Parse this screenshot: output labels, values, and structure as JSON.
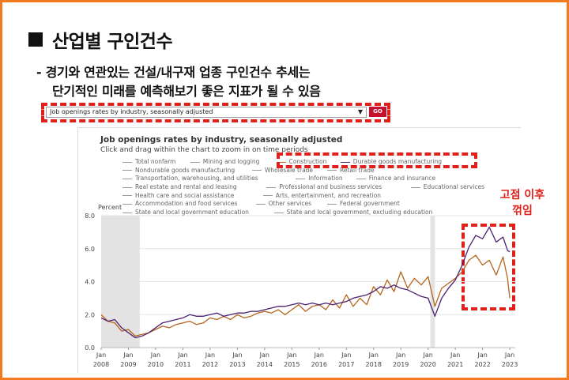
{
  "slide": {
    "title": "산업별 구인건수",
    "bullet_line1": "- 경기와 연관있는 건설/내구재 업종 구인건수 추세는",
    "bullet_line2": "단기적인 미래를 예측해보기 좋은 지표가 될 수 있음",
    "annotation_line1": "고점 이후",
    "annotation_line2": "꺾임",
    "accent_color": "#f47a20",
    "highlight_color": "#e0201b"
  },
  "selector": {
    "value": "Job openings rates by industry, seasonally adjusted",
    "go_label": "GO"
  },
  "chart_data": {
    "type": "line",
    "title": "Job openings rates by industry, seasonally adjusted",
    "subtitle": "Click and drag within the chart to zoom in on time periods",
    "ylabel": "Percent",
    "ylim": [
      0,
      8
    ],
    "yticks": [
      "0.0",
      "2.0",
      "4.0",
      "6.0",
      "8.0"
    ],
    "xticks": [
      {
        "month": "Jan",
        "year": "2008"
      },
      {
        "month": "Jan",
        "year": "2009"
      },
      {
        "month": "Jan",
        "year": "2010"
      },
      {
        "month": "Jan",
        "year": "2011"
      },
      {
        "month": "Jan",
        "year": "2012"
      },
      {
        "month": "Jan",
        "year": "2013"
      },
      {
        "month": "Jan",
        "year": "2014"
      },
      {
        "month": "Jan",
        "year": "2015"
      },
      {
        "month": "Jan",
        "year": "2016"
      },
      {
        "month": "Jan",
        "year": "2017"
      },
      {
        "month": "Jan",
        "year": "2018"
      },
      {
        "month": "Jan",
        "year": "2019"
      },
      {
        "month": "Jan",
        "year": "2020"
      },
      {
        "month": "Jan",
        "year": "2021"
      },
      {
        "month": "Jan",
        "year": "2022"
      },
      {
        "month": "Jan",
        "year": "2023"
      }
    ],
    "recession_bands": [
      [
        "2008-01",
        "2009-06"
      ],
      [
        "2020-02",
        "2020-04"
      ]
    ],
    "legend": [
      [
        "Total nonfarm",
        "Mining and logging",
        "Construction",
        "Durable goods manufacturing"
      ],
      [
        "Nondurable goods manufacturing",
        "Wholesale trade",
        "Retail trade"
      ],
      [
        "Transportation, warehousing, and utilities",
        "Information",
        "Finance and insurance"
      ],
      [
        "Real estate and rental and leasing",
        "Professional and business services",
        "Educational services"
      ],
      [
        "Health care and social assistance",
        "Arts, entertainment, and recreation"
      ],
      [
        "Accommodation and food services",
        "Other services",
        "Federal government"
      ],
      [
        "State and local government education",
        "State and local government, excluding education"
      ]
    ],
    "series": [
      {
        "name": "Construction",
        "color": "#b5651d",
        "points": [
          [
            "2008-01",
            2.0
          ],
          [
            "2008-04",
            1.6
          ],
          [
            "2008-07",
            1.5
          ],
          [
            "2008-10",
            1.0
          ],
          [
            "2009-01",
            1.1
          ],
          [
            "2009-04",
            0.7
          ],
          [
            "2009-07",
            0.8
          ],
          [
            "2009-10",
            0.9
          ],
          [
            "2010-01",
            1.1
          ],
          [
            "2010-04",
            1.3
          ],
          [
            "2010-07",
            1.2
          ],
          [
            "2010-10",
            1.4
          ],
          [
            "2011-01",
            1.5
          ],
          [
            "2011-04",
            1.6
          ],
          [
            "2011-07",
            1.4
          ],
          [
            "2011-10",
            1.5
          ],
          [
            "2012-01",
            1.8
          ],
          [
            "2012-04",
            1.7
          ],
          [
            "2012-07",
            1.9
          ],
          [
            "2012-10",
            1.7
          ],
          [
            "2013-01",
            2.0
          ],
          [
            "2013-04",
            1.8
          ],
          [
            "2013-07",
            1.9
          ],
          [
            "2013-10",
            2.1
          ],
          [
            "2014-01",
            2.2
          ],
          [
            "2014-04",
            2.1
          ],
          [
            "2014-07",
            2.3
          ],
          [
            "2014-10",
            2.0
          ],
          [
            "2015-01",
            2.3
          ],
          [
            "2015-04",
            2.6
          ],
          [
            "2015-07",
            2.2
          ],
          [
            "2015-10",
            2.5
          ],
          [
            "2016-01",
            2.6
          ],
          [
            "2016-04",
            2.3
          ],
          [
            "2016-07",
            2.9
          ],
          [
            "2016-10",
            2.4
          ],
          [
            "2017-01",
            3.2
          ],
          [
            "2017-04",
            2.5
          ],
          [
            "2017-07",
            3.0
          ],
          [
            "2017-10",
            2.6
          ],
          [
            "2018-01",
            3.7
          ],
          [
            "2018-04",
            3.2
          ],
          [
            "2018-07",
            4.1
          ],
          [
            "2018-10",
            3.4
          ],
          [
            "2019-01",
            4.6
          ],
          [
            "2019-04",
            3.6
          ],
          [
            "2019-07",
            4.2
          ],
          [
            "2019-10",
            3.8
          ],
          [
            "2020-01",
            4.3
          ],
          [
            "2020-04",
            2.5
          ],
          [
            "2020-07",
            3.6
          ],
          [
            "2020-10",
            3.9
          ],
          [
            "2021-01",
            4.2
          ],
          [
            "2021-04",
            4.6
          ],
          [
            "2021-07",
            5.3
          ],
          [
            "2021-10",
            5.6
          ],
          [
            "2022-01",
            5.0
          ],
          [
            "2022-04",
            5.3
          ],
          [
            "2022-07",
            4.4
          ],
          [
            "2022-10",
            5.5
          ],
          [
            "2022-12",
            4.2
          ],
          [
            "2023-01",
            3.0
          ]
        ]
      },
      {
        "name": "Durable goods manufacturing",
        "color": "#4b1f6f",
        "points": [
          [
            "2008-01",
            1.8
          ],
          [
            "2008-04",
            1.6
          ],
          [
            "2008-07",
            1.7
          ],
          [
            "2008-10",
            1.2
          ],
          [
            "2009-01",
            0.9
          ],
          [
            "2009-04",
            0.6
          ],
          [
            "2009-07",
            0.7
          ],
          [
            "2009-10",
            0.9
          ],
          [
            "2010-01",
            1.2
          ],
          [
            "2010-04",
            1.5
          ],
          [
            "2010-07",
            1.6
          ],
          [
            "2010-10",
            1.7
          ],
          [
            "2011-01",
            1.8
          ],
          [
            "2011-04",
            2.0
          ],
          [
            "2011-07",
            1.9
          ],
          [
            "2011-10",
            1.9
          ],
          [
            "2012-01",
            2.0
          ],
          [
            "2012-04",
            2.1
          ],
          [
            "2012-07",
            1.9
          ],
          [
            "2012-10",
            2.0
          ],
          [
            "2013-01",
            2.1
          ],
          [
            "2013-04",
            2.1
          ],
          [
            "2013-07",
            2.2
          ],
          [
            "2013-10",
            2.2
          ],
          [
            "2014-01",
            2.3
          ],
          [
            "2014-04",
            2.4
          ],
          [
            "2014-07",
            2.5
          ],
          [
            "2014-10",
            2.5
          ],
          [
            "2015-01",
            2.6
          ],
          [
            "2015-04",
            2.7
          ],
          [
            "2015-07",
            2.6
          ],
          [
            "2015-10",
            2.7
          ],
          [
            "2016-01",
            2.6
          ],
          [
            "2016-04",
            2.7
          ],
          [
            "2016-07",
            2.6
          ],
          [
            "2016-10",
            2.7
          ],
          [
            "2017-01",
            2.8
          ],
          [
            "2017-04",
            3.0
          ],
          [
            "2017-07",
            3.1
          ],
          [
            "2017-10",
            3.2
          ],
          [
            "2018-01",
            3.4
          ],
          [
            "2018-04",
            3.7
          ],
          [
            "2018-07",
            3.6
          ],
          [
            "2018-10",
            3.8
          ],
          [
            "2019-01",
            3.6
          ],
          [
            "2019-04",
            3.5
          ],
          [
            "2019-07",
            3.3
          ],
          [
            "2019-10",
            3.1
          ],
          [
            "2020-01",
            3.0
          ],
          [
            "2020-04",
            1.9
          ],
          [
            "2020-07",
            3.0
          ],
          [
            "2020-10",
            3.6
          ],
          [
            "2021-01",
            4.1
          ],
          [
            "2021-04",
            5.0
          ],
          [
            "2021-07",
            6.1
          ],
          [
            "2021-10",
            6.8
          ],
          [
            "2022-01",
            6.6
          ],
          [
            "2022-04",
            7.3
          ],
          [
            "2022-07",
            6.4
          ],
          [
            "2022-10",
            6.7
          ],
          [
            "2022-12",
            5.9
          ],
          [
            "2023-01",
            5.8
          ]
        ]
      }
    ]
  }
}
